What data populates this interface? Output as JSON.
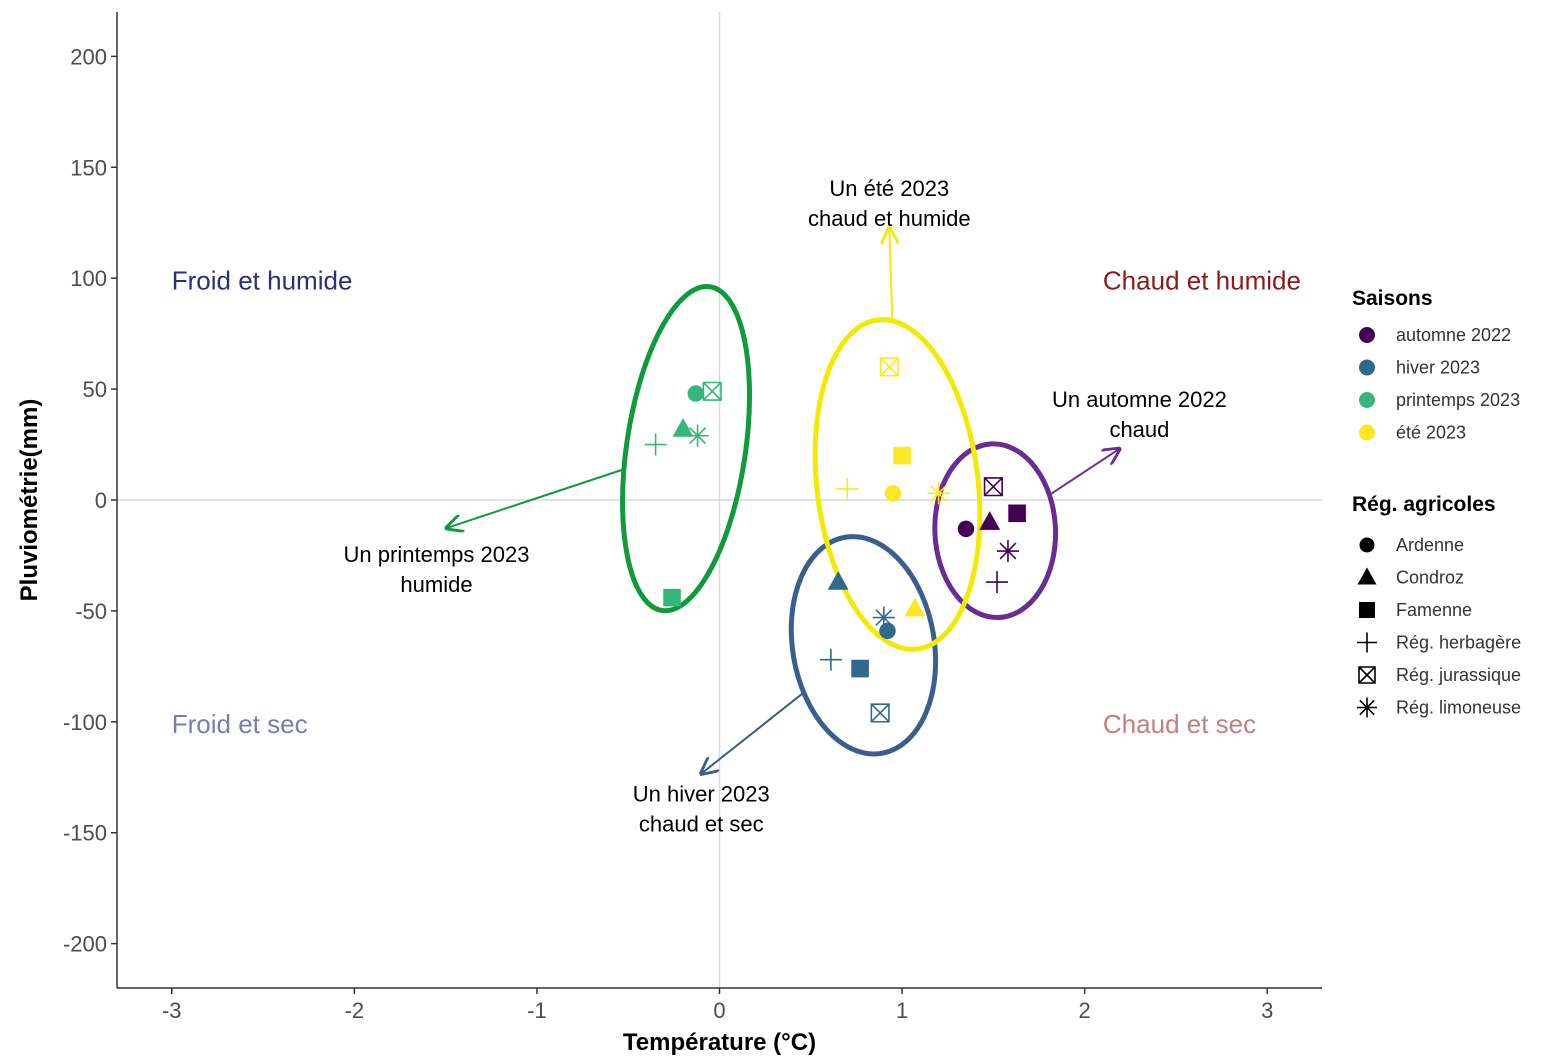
{
  "chart_data": {
    "type": "scatter",
    "xlabel": "Température (°C)",
    "ylabel": "Pluviométrie(mm)",
    "xlim": [
      -3.3,
      3.3
    ],
    "ylim": [
      -220,
      220
    ],
    "x_ticks": [
      -3,
      -2,
      -1,
      0,
      1,
      2,
      3
    ],
    "y_ticks": [
      -200,
      -150,
      -100,
      -50,
      0,
      50,
      100,
      150,
      200
    ],
    "grid": false,
    "reference_lines": {
      "x": 0,
      "y": 0
    },
    "quadrant_labels": [
      {
        "key": "fh",
        "text": "Froid et humide",
        "x": -3.0,
        "y": 95,
        "color": "#2b2f7a"
      },
      {
        "key": "ch",
        "text": "Chaud et humide",
        "x": 2.1,
        "y": 95,
        "color": "#8b1a1a"
      },
      {
        "key": "fs",
        "text": "Froid et sec",
        "x": -3.0,
        "y": -105,
        "color": "#7a7ab8"
      },
      {
        "key": "cs",
        "text": "Chaud et sec",
        "x": 2.1,
        "y": -105,
        "color": "#c08080"
      }
    ],
    "legend": {
      "placement": "right",
      "seasons_title": "Saisons",
      "seasons": [
        {
          "name": "automne 2022",
          "color": "#440154"
        },
        {
          "name": "hiver 2023",
          "color": "#31688e"
        },
        {
          "name": "printemps 2023",
          "color": "#35b779"
        },
        {
          "name": "été 2023",
          "color": "#fde725"
        }
      ],
      "regions_title": "Rég. agricoles",
      "regions": [
        {
          "name": "Ardenne",
          "shape": "circle"
        },
        {
          "name": "Condroz",
          "shape": "triangle"
        },
        {
          "name": "Famenne",
          "shape": "square"
        },
        {
          "name": "Rég. herbagère",
          "shape": "plus"
        },
        {
          "name": "Rég. jurassique",
          "shape": "boxx"
        },
        {
          "name": "Rég. limoneuse",
          "shape": "asterisk"
        }
      ]
    },
    "points": [
      {
        "season": "automne 2022",
        "region": "Ardenne",
        "x": 1.35,
        "y": -13
      },
      {
        "season": "automne 2022",
        "region": "Condroz",
        "x": 1.48,
        "y": -10
      },
      {
        "season": "automne 2022",
        "region": "Famenne",
        "x": 1.63,
        "y": -6
      },
      {
        "season": "automne 2022",
        "region": "Rég. herbagère",
        "x": 1.52,
        "y": -37
      },
      {
        "season": "automne 2022",
        "region": "Rég. jurassique",
        "x": 1.5,
        "y": 6
      },
      {
        "season": "automne 2022",
        "region": "Rég. limoneuse",
        "x": 1.58,
        "y": -23
      },
      {
        "season": "hiver 2023",
        "region": "Ardenne",
        "x": 0.92,
        "y": -59
      },
      {
        "season": "hiver 2023",
        "region": "Condroz",
        "x": 0.65,
        "y": -37
      },
      {
        "season": "hiver 2023",
        "region": "Famenne",
        "x": 0.77,
        "y": -76
      },
      {
        "season": "hiver 2023",
        "region": "Rég. herbagère",
        "x": 0.61,
        "y": -72
      },
      {
        "season": "hiver 2023",
        "region": "Rég. jurassique",
        "x": 0.88,
        "y": -96
      },
      {
        "season": "hiver 2023",
        "region": "Rég. limoneuse",
        "x": 0.9,
        "y": -53
      },
      {
        "season": "printemps 2023",
        "region": "Ardenne",
        "x": -0.13,
        "y": 48
      },
      {
        "season": "printemps 2023",
        "region": "Condroz",
        "x": -0.2,
        "y": 32
      },
      {
        "season": "printemps 2023",
        "region": "Famenne",
        "x": -0.26,
        "y": -44
      },
      {
        "season": "printemps 2023",
        "region": "Rég. herbagère",
        "x": -0.35,
        "y": 25
      },
      {
        "season": "printemps 2023",
        "region": "Rég. jurassique",
        "x": -0.04,
        "y": 49
      },
      {
        "season": "printemps 2023",
        "region": "Rég. limoneuse",
        "x": -0.12,
        "y": 29
      },
      {
        "season": "été 2023",
        "region": "Ardenne",
        "x": 0.95,
        "y": 3
      },
      {
        "season": "été 2023",
        "region": "Condroz",
        "x": 1.07,
        "y": -49
      },
      {
        "season": "été 2023",
        "region": "Famenne",
        "x": 1.0,
        "y": 20
      },
      {
        "season": "été 2023",
        "region": "Rég. herbagère",
        "x": 0.7,
        "y": 5
      },
      {
        "season": "été 2023",
        "region": "Rég. jurassique",
        "x": 0.93,
        "y": 60
      },
      {
        "season": "été 2023",
        "region": "Rég. limoneuse",
        "x": 1.2,
        "y": 3
      }
    ],
    "annotations": [
      {
        "key": "printemps",
        "lines": [
          "Un printemps 2023",
          "humide"
        ],
        "x": -1.55,
        "y": -28,
        "color": "#119a3c"
      },
      {
        "key": "ete",
        "lines": [
          "Un été 2023",
          "chaud et humide"
        ],
        "x": 0.93,
        "y": 137,
        "color": "#f2ea00"
      },
      {
        "key": "automne",
        "lines": [
          "Un automne 2022",
          "chaud"
        ],
        "x": 2.3,
        "y": 42,
        "color": "#6a2c91"
      },
      {
        "key": "hiver",
        "lines": [
          "Un hiver 2023",
          "chaud et sec"
        ],
        "x": -0.1,
        "y": -136,
        "color": "#3a5f8f"
      }
    ]
  }
}
